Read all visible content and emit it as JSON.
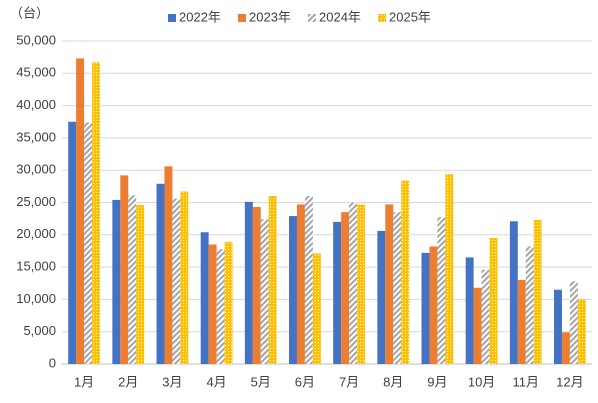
{
  "chart_data": {
    "type": "bar",
    "y_unit": "（台）",
    "categories": [
      "1月",
      "2月",
      "3月",
      "4月",
      "5月",
      "6月",
      "7月",
      "8月",
      "9月",
      "10月",
      "11月",
      "12月"
    ],
    "series": [
      {
        "name": "2022年",
        "color": "#4472c4",
        "pattern": "solid",
        "values": [
          37500,
          25400,
          27900,
          20400,
          25100,
          22900,
          22000,
          20600,
          17200,
          16500,
          22100,
          11500
        ]
      },
      {
        "name": "2023年",
        "color": "#ed7d31",
        "pattern": "solid",
        "values": [
          47300,
          29200,
          30600,
          18500,
          24300,
          24700,
          23500,
          24700,
          18200,
          11800,
          13000,
          4900
        ]
      },
      {
        "name": "2024年",
        "color": "#a5a5a5",
        "pattern": "diagonal",
        "values": [
          37400,
          26100,
          25600,
          17800,
          22400,
          26000,
          25000,
          23500,
          22700,
          14600,
          18200,
          12800
        ]
      },
      {
        "name": "2025年",
        "color": "#ffc000",
        "pattern": "dots",
        "values": [
          46700,
          24600,
          26700,
          18900,
          26000,
          17100,
          24700,
          28400,
          29400,
          19500,
          22300,
          10000
        ]
      }
    ],
    "ylim": [
      0,
      50000
    ],
    "yticks": [
      0,
      {
        "value": 5000,
        "label": "5,000"
      },
      {
        "value": 10000,
        "label": "10,000"
      },
      {
        "value": 15000,
        "label": "15,000"
      },
      {
        "value": 20000,
        "label": "20,000"
      },
      {
        "value": 25000,
        "label": "25,000"
      },
      {
        "value": 30000,
        "label": "30,000"
      },
      {
        "value": 35000,
        "label": "35,000"
      },
      {
        "value": 40000,
        "label": "40,000"
      },
      {
        "value": 45000,
        "label": "45,000"
      },
      {
        "value": 50000,
        "label": "50,000"
      }
    ],
    "grid": true,
    "legend": "top"
  }
}
